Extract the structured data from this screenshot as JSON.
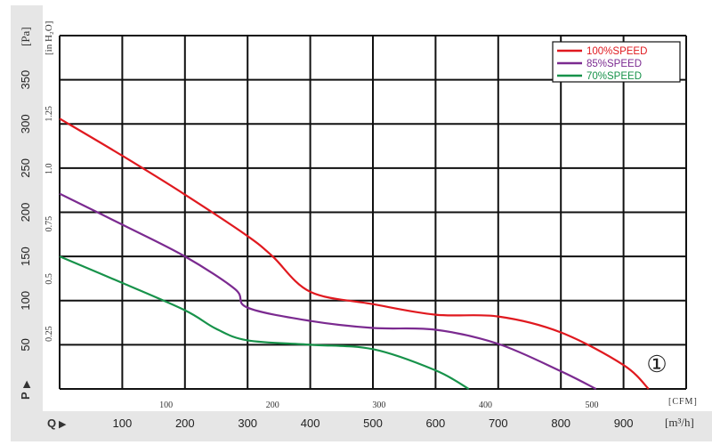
{
  "chart_data": {
    "type": "line",
    "title": "",
    "xlabel": "Q",
    "ylabel": "P",
    "x_unit": "[m³/h]",
    "x_unit_secondary": "[CFM]",
    "y_unit": "[Pa]",
    "y_unit_secondary": "[in H₂O]",
    "xlim": [
      0,
      1000
    ],
    "ylim": [
      0,
      400
    ],
    "grid": true,
    "legend_position": "top-right",
    "badge": "①",
    "x_ticks_m3h": [
      "100",
      "200",
      "300",
      "400",
      "500",
      "600",
      "700",
      "800",
      "900"
    ],
    "x_ticks_cfm": [
      {
        "label": "100",
        "m3h": 169.9
      },
      {
        "label": "200",
        "m3h": 339.8
      },
      {
        "label": "300",
        "m3h": 509.7
      },
      {
        "label": "400",
        "m3h": 679.6
      },
      {
        "label": "500",
        "m3h": 849.5
      }
    ],
    "y_ticks_pa": [
      "50",
      "100",
      "150",
      "200",
      "250",
      "300",
      "350"
    ],
    "y_ticks_inh2o": [
      {
        "label": "0.25",
        "pa": 62.3
      },
      {
        "label": "0.5",
        "pa": 124.5
      },
      {
        "label": "0.75",
        "pa": 186.8
      },
      {
        "label": "1.0",
        "pa": 249.1
      },
      {
        "label": "1.25",
        "pa": 311.4
      }
    ],
    "series": [
      {
        "name": "100%SPEED",
        "color": "#e0191f",
        "x": [
          0,
          100,
          200,
          300,
          340,
          400,
          500,
          600,
          700,
          800,
          900,
          940
        ],
        "y": [
          306,
          264,
          220,
          173,
          150,
          110,
          96,
          84,
          82,
          64,
          27,
          0
        ]
      },
      {
        "name": "85%SPEED",
        "color": "#7b2a90",
        "x": [
          0,
          100,
          200,
          280,
          300,
          400,
          500,
          600,
          700,
          800,
          856
        ],
        "y": [
          221,
          186,
          150,
          113,
          92,
          77,
          69,
          67,
          51,
          20,
          0
        ]
      },
      {
        "name": "70%SPEED",
        "color": "#17924a",
        "x": [
          0,
          100,
          200,
          250,
          300,
          400,
          500,
          600,
          653
        ],
        "y": [
          150,
          120,
          89,
          68,
          55,
          50,
          45,
          21,
          0
        ]
      }
    ]
  }
}
